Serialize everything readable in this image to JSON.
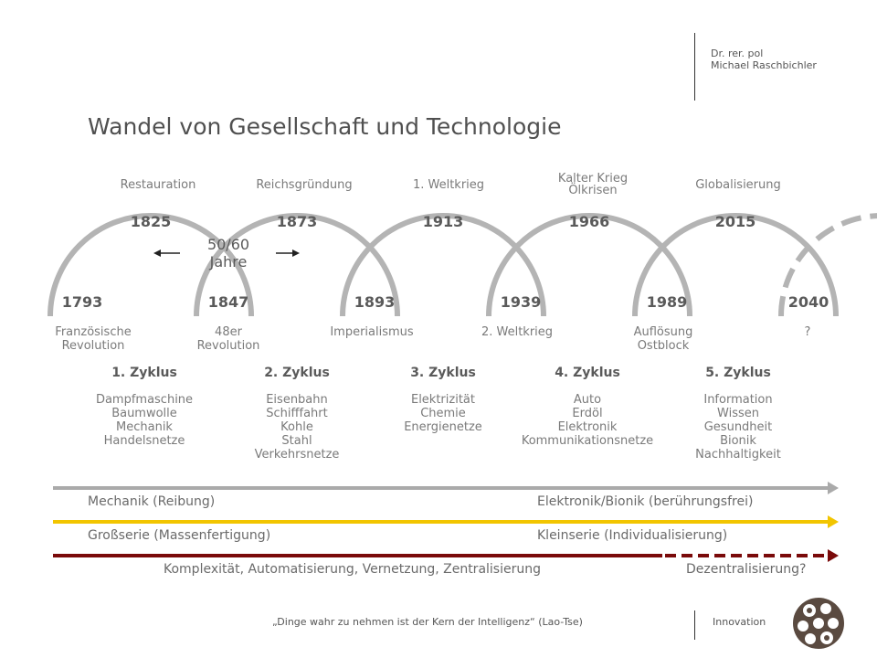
{
  "header": {
    "author_line1": "Dr. rer. pol",
    "author_line2": "Michael Raschbichler",
    "title": "Wandel von Gesellschaft und Technologie"
  },
  "eras": [
    {
      "lines": [
        "Restauration"
      ]
    },
    {
      "lines": [
        "Reichsgründung"
      ]
    },
    {
      "lines": [
        "1. Weltkrieg"
      ]
    },
    {
      "lines": [
        "Kalter Krieg",
        "Ölkrisen"
      ]
    },
    {
      "lines": [
        "Globalisierung"
      ]
    }
  ],
  "peak_years": [
    "1825",
    "1873",
    "1913",
    "1966",
    "2015"
  ],
  "trough_years": [
    "1793",
    "1847",
    "1893",
    "1939",
    "1989",
    "2040"
  ],
  "trough_events": [
    {
      "lines": [
        "Französische",
        "Revolution"
      ]
    },
    {
      "lines": [
        "48er",
        "Revolution"
      ]
    },
    {
      "lines": [
        "Imperialismus"
      ]
    },
    {
      "lines": [
        "2. Weltkrieg"
      ]
    },
    {
      "lines": [
        "Auflösung",
        "Ostblock"
      ]
    },
    {
      "lines": [
        "?"
      ]
    }
  ],
  "cycle_duration": {
    "line1": "50/60",
    "line2": "Jahre"
  },
  "cycles": [
    {
      "name": "1. Zyklus",
      "techs": [
        "Dampfmaschine",
        "Baumwolle",
        "Mechanik",
        "Handelsnetze"
      ]
    },
    {
      "name": "2. Zyklus",
      "techs": [
        "Eisenbahn",
        "Schifffahrt",
        "Kohle",
        "Stahl",
        "Verkehrsnetze"
      ]
    },
    {
      "name": "3. Zyklus",
      "techs": [
        "Elektrizität",
        "Chemie",
        "Energienetze"
      ]
    },
    {
      "name": "4. Zyklus",
      "techs": [
        "Auto",
        "Erdöl",
        "Elektronik",
        "Kommunikationsnetze"
      ]
    },
    {
      "name": "5. Zyklus",
      "techs": [
        "Information",
        "Wissen",
        "Gesundheit",
        "Bionik",
        "Nachhaltigkeit"
      ]
    }
  ],
  "trends": [
    {
      "left": "Mechanik (Reibung)",
      "right": "Elektronik/Bionik (berührungsfrei)",
      "color": "#aaaaaa"
    },
    {
      "left": "Großserie (Massenfertigung)",
      "right": "Kleinserie (Individualisierung)",
      "color": "#f2c500"
    },
    {
      "left": "Komplexität, Automatisierung, Vernetzung, Zentralisierung",
      "right": "Dezentralisierung?",
      "color": "#7a0a0a"
    }
  ],
  "footer": {
    "quote": "„Dinge wahr zu nehmen ist der Kern der Intelligenz“  (Lao-Tse)",
    "topic": "Innovation"
  },
  "colors": {
    "arc": "#b4b4b4",
    "logo": "#5a4a40"
  }
}
